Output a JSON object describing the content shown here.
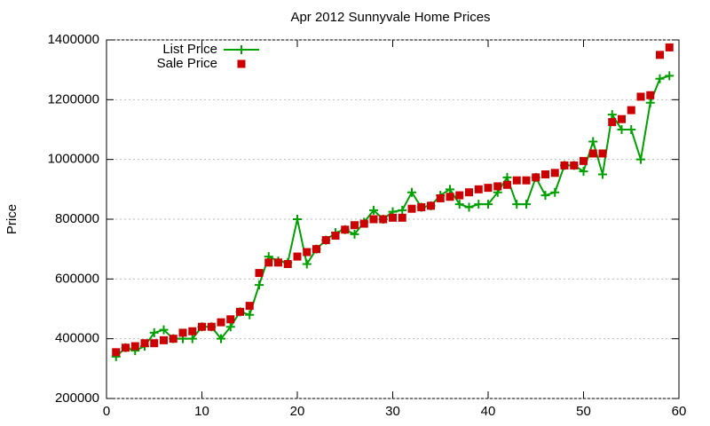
{
  "chart_data": {
    "type": "line",
    "title": "Apr 2012 Sunnyvale Home Prices",
    "y_label": "Price",
    "x": [
      1,
      2,
      3,
      4,
      5,
      6,
      7,
      8,
      9,
      10,
      11,
      12,
      13,
      14,
      15,
      16,
      17,
      18,
      19,
      20,
      21,
      22,
      23,
      24,
      25,
      26,
      27,
      28,
      29,
      30,
      31,
      32,
      33,
      34,
      35,
      36,
      37,
      38,
      39,
      40,
      41,
      42,
      43,
      44,
      45,
      46,
      47,
      48,
      49,
      50,
      51,
      52,
      53,
      54,
      55,
      56,
      57,
      58,
      59
    ],
    "series": [
      {
        "name": "List Price",
        "color": "#00a000",
        "marker": "plus",
        "line": true,
        "values": [
          340000,
          370000,
          360000,
          375000,
          420000,
          430000,
          400000,
          400000,
          400000,
          440000,
          440000,
          400000,
          440000,
          490000,
          480000,
          580000,
          675000,
          660000,
          655000,
          800000,
          650000,
          700000,
          730000,
          755000,
          765000,
          750000,
          790000,
          830000,
          800000,
          825000,
          830000,
          890000,
          840000,
          845000,
          880000,
          900000,
          850000,
          840000,
          850000,
          850000,
          890000,
          940000,
          850000,
          850000,
          940000,
          880000,
          890000,
          980000,
          980000,
          960000,
          1060000,
          950000,
          1150000,
          1100000,
          1100000,
          1000000,
          1190000,
          1270000,
          1280000
        ]
      },
      {
        "name": "Sale Price",
        "color": "#cc0000",
        "marker": "square",
        "line": false,
        "values": [
          355000,
          370000,
          375000,
          385000,
          385000,
          395000,
          400000,
          420000,
          425000,
          440000,
          440000,
          455000,
          465000,
          490000,
          510000,
          620000,
          655000,
          655000,
          650000,
          675000,
          690000,
          700000,
          730000,
          745000,
          765000,
          780000,
          785000,
          800000,
          800000,
          805000,
          805000,
          835000,
          840000,
          845000,
          870000,
          875000,
          880000,
          890000,
          900000,
          905000,
          910000,
          915000,
          930000,
          930000,
          940000,
          950000,
          955000,
          980000,
          980000,
          995000,
          1020000,
          1020000,
          1125000,
          1135000,
          1165000,
          1210000,
          1215000,
          1350000,
          1375000
        ]
      }
    ],
    "xlim": [
      0,
      60
    ],
    "xticks": [
      0,
      10,
      20,
      30,
      40,
      50,
      60
    ],
    "ylim": [
      200000,
      1400000
    ],
    "yticks": [
      200000,
      400000,
      600000,
      800000,
      1000000,
      1200000,
      1400000
    ],
    "grid": "y",
    "legend": "top-left"
  }
}
